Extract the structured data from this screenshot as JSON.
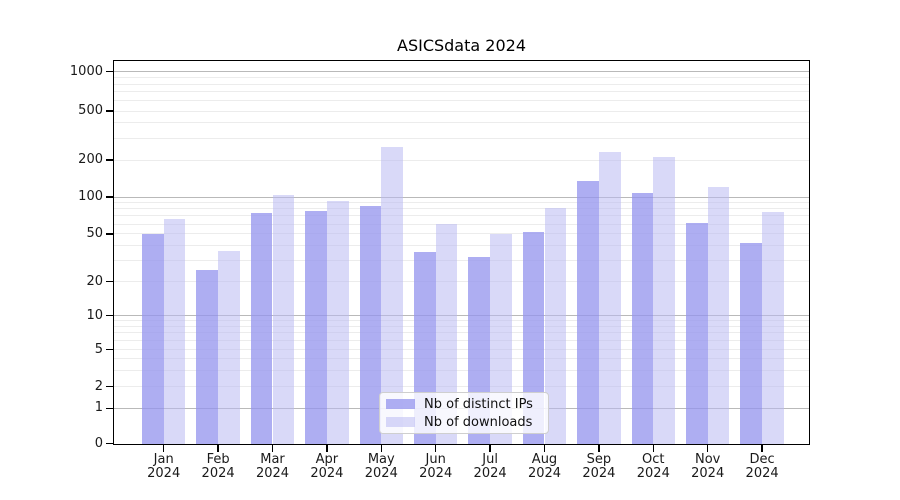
{
  "title": "ASICSdata 2024",
  "chart_data": {
    "type": "bar",
    "title": "ASICSdata 2024",
    "categories": [
      "Jan",
      "Feb",
      "Mar",
      "Apr",
      "May",
      "Jun",
      "Jul",
      "Aug",
      "Sep",
      "Oct",
      "Nov",
      "Dec"
    ],
    "x_year_label": "2024",
    "series": [
      {
        "name": "Nb of distinct IPs",
        "color": "rgba(148,148,238,0.76)",
        "values": [
          50,
          25,
          74,
          77,
          85,
          35,
          32,
          52,
          135,
          107,
          61,
          42
        ]
      },
      {
        "name": "Nb of downloads",
        "color": "rgba(185,185,242,0.55)",
        "values": [
          66,
          36,
          103,
          93,
          253,
          60,
          50,
          81,
          231,
          213,
          120,
          76
        ]
      }
    ],
    "yticks": [
      0,
      1,
      2,
      5,
      10,
      20,
      50,
      100,
      200,
      500,
      1000
    ],
    "yscale": "symlog",
    "ylim": [
      0,
      1250
    ],
    "xlabel": "",
    "ylabel": "",
    "grid": "horizontal major (1,10,100,1000) dark + log minors light",
    "legend_position": "lower center inside plot",
    "colors": {
      "bar_distinct_ips_on_white": "#adadf2",
      "bar_downloads_on_white": "#d8d8f8",
      "major_grid": "#b9b9b9",
      "minor_grid": "#ececec",
      "axis": "#000000"
    }
  }
}
